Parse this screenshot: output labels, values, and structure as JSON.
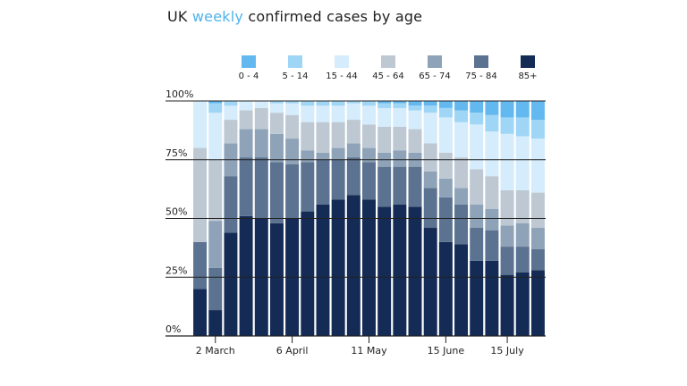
{
  "title": {
    "prefix": "UK ",
    "highlight": "weekly",
    "suffix": " confirmed cases by age"
  },
  "colors": {
    "title_highlight": "#4fb3ea",
    "series": [
      "#63b9ef",
      "#9fd5f5",
      "#d4ecfb",
      "#bdc8d3",
      "#8ea3b8",
      "#5b7290",
      "#142b55"
    ]
  },
  "chart_data": {
    "type": "bar",
    "stacked": true,
    "title": "UK weekly confirmed cases by age",
    "ylim": [
      0,
      100
    ],
    "y_ticks": [
      "0%",
      "25%",
      "50%",
      "75%",
      "100%"
    ],
    "y_tick_values": [
      0,
      25,
      50,
      75,
      100
    ],
    "x_tick_labels": [
      {
        "label": "2 March",
        "index": 1
      },
      {
        "label": "6 April",
        "index": 6
      },
      {
        "label": "11 May",
        "index": 11
      },
      {
        "label": "15 June",
        "index": 16
      },
      {
        "label": "15 July",
        "index": 20
      }
    ],
    "legend_position": "top",
    "series_order_bottom_to_top": [
      "85+",
      "75 - 84",
      "65 - 74",
      "45 - 64",
      "15 - 44",
      "5 - 14",
      "0 - 4"
    ],
    "weeks": 23,
    "cumulative_tops_percent": {
      "85+": [
        20,
        11,
        44,
        51,
        50,
        48,
        50,
        53,
        56,
        58,
        60,
        58,
        55,
        56,
        55,
        46,
        40,
        39,
        32,
        32,
        26,
        27,
        28
      ],
      "75 - 84": [
        40,
        29,
        68,
        76,
        76,
        74,
        73,
        74,
        75,
        75,
        76,
        74,
        72,
        72,
        72,
        63,
        59,
        56,
        46,
        45,
        38,
        38,
        37
      ],
      "65 - 74": [
        40,
        49,
        82,
        88,
        88,
        86,
        84,
        79,
        78,
        80,
        82,
        80,
        78,
        79,
        78,
        70,
        67,
        63,
        56,
        54,
        47,
        48,
        46
      ],
      "45 - 64": [
        80,
        75,
        92,
        96,
        97,
        95,
        94,
        91,
        91,
        91,
        92,
        90,
        89,
        89,
        88,
        82,
        78,
        76,
        71,
        68,
        62,
        62,
        61
      ],
      "15 - 44": [
        100,
        95,
        98,
        100,
        100,
        99,
        99,
        98,
        98,
        98,
        99,
        98,
        97,
        97,
        96,
        95,
        93,
        91,
        90,
        87,
        86,
        85,
        84
      ],
      "5 - 14": [
        100,
        99,
        100,
        100,
        100,
        100,
        100,
        100,
        100,
        100,
        100,
        100,
        99,
        99,
        98,
        98,
        97,
        96,
        95,
        94,
        93,
        93,
        92
      ],
      "0 - 4": [
        100,
        100,
        100,
        100,
        100,
        100,
        100,
        100,
        100,
        100,
        100,
        100,
        100,
        100,
        100,
        100,
        100,
        100,
        100,
        100,
        100,
        100,
        100
      ]
    }
  },
  "legend": [
    {
      "label": "0 - 4",
      "color": "#63b9ef"
    },
    {
      "label": "5 - 14",
      "color": "#9fd5f5"
    },
    {
      "label": "15 - 44",
      "color": "#d4ecfb"
    },
    {
      "label": "45 - 64",
      "color": "#bdc8d3"
    },
    {
      "label": "65 - 74",
      "color": "#8ea3b8"
    },
    {
      "label": "75 - 84",
      "color": "#5b7290"
    },
    {
      "label": "85+",
      "color": "#142b55"
    }
  ]
}
